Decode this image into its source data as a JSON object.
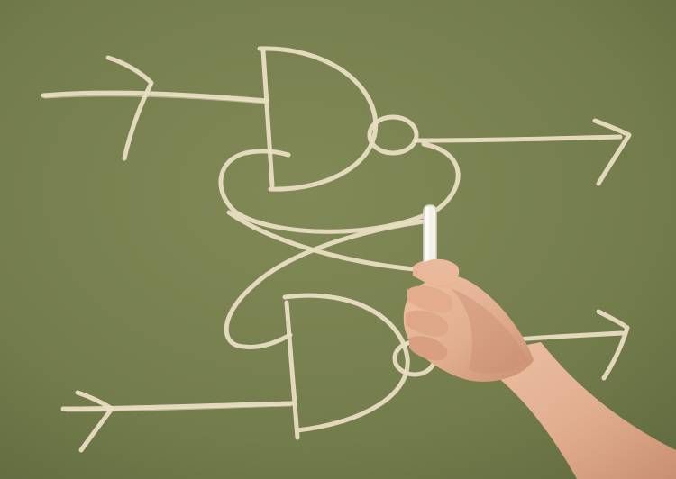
{
  "scene": {
    "subject": "chalk-drawn-logic-diagram",
    "colors": {
      "board": "#7a8350",
      "board_dark": "#6b7446",
      "chalk": "#e9ddc2",
      "skin": "#e5b496",
      "skin_shadow": "#c98f73",
      "chalk_stick": "#f4f1e8"
    },
    "icons": [
      "input-arrow-icon",
      "nand-gate-icon",
      "output-arrow-icon",
      "chalk-stick-icon"
    ]
  }
}
